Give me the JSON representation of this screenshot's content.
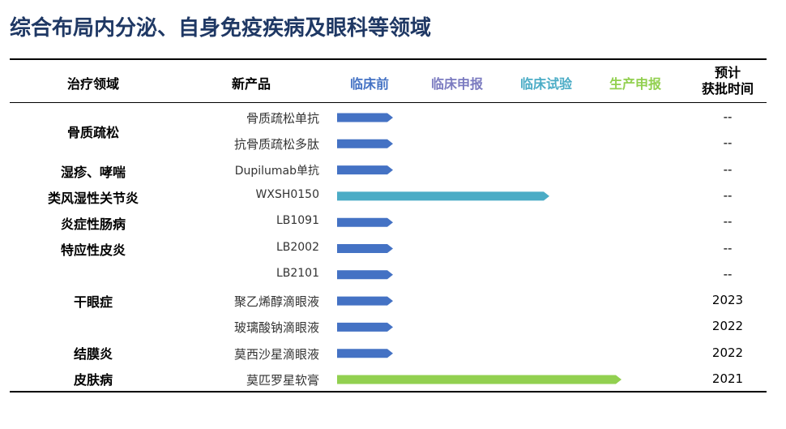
{
  "title": "综合布局内分泌、自身免疫疾病及眼科等领域",
  "headers": {
    "domain": "治疗领域",
    "product": "新产品",
    "time_line1": "预计",
    "time_line2": "获批时间"
  },
  "chart_data": {
    "type": "bar",
    "orientation": "horizontal",
    "stages": [
      {
        "name": "临床前",
        "color": "#4472c4"
      },
      {
        "name": "临床申报",
        "color": "#7b7bc0"
      },
      {
        "name": "临床试验",
        "color": "#4bacc6"
      },
      {
        "name": "生产申报",
        "color": "#92d050"
      }
    ],
    "domains": [
      "骨质疏松",
      "湿疹、哮喘",
      "类风湿性关节炎",
      "炎症性肠病",
      "特应性皮炎",
      "干眼症",
      "结膜炎",
      "皮肤病"
    ],
    "rows": [
      {
        "product": "骨质疏松单抗",
        "stage": "临床前",
        "time": "--"
      },
      {
        "product": "抗骨质疏松多肽",
        "stage": "临床前",
        "time": "--"
      },
      {
        "product": "Dupilumab单抗",
        "stage": "临床前",
        "time": "--"
      },
      {
        "product": "WXSH0150",
        "stage": "临床试验",
        "time": "--"
      },
      {
        "product": "LB1091",
        "stage": "临床前",
        "time": "--"
      },
      {
        "product": "LB2002",
        "stage": "临床前",
        "time": "--"
      },
      {
        "product": "LB2101",
        "stage": "临床前",
        "time": "--"
      },
      {
        "product": "聚乙烯醇滴眼液",
        "stage": "临床前",
        "time": "2023"
      },
      {
        "product": "玻璃酸钠滴眼液",
        "stage": "临床前",
        "time": "2022"
      },
      {
        "product": "莫西沙星滴眼液",
        "stage": "临床前",
        "time": "2022"
      },
      {
        "product": "莫匹罗星软膏",
        "stage": "生产申报",
        "time": "2021"
      }
    ]
  }
}
